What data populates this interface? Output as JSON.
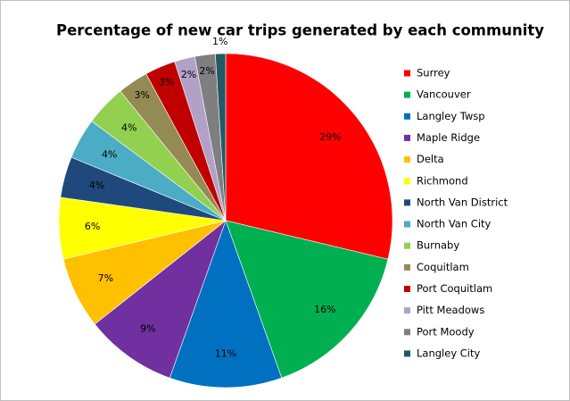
{
  "chart_data": {
    "type": "pie",
    "title": "Percentage of new car trips generated by each community",
    "categories": [
      "Surrey",
      "Vancouver",
      "Langley Twsp",
      "Maple Ridge",
      "Delta",
      "Richmond",
      "North Van District",
      "North Van City",
      "Burnaby",
      "Coquitlam",
      "Port Coquitlam",
      "Pitt Meadows",
      "Port Moody",
      "Langley City"
    ],
    "values": [
      29,
      16,
      11,
      9,
      7,
      6,
      4,
      4,
      4,
      3,
      3,
      2,
      2,
      1
    ],
    "value_labels": [
      "29%",
      "16%",
      "11%",
      "9%",
      "7%",
      "6%",
      "4%",
      "4%",
      "4%",
      "3%",
      "3%",
      "2%",
      "2%",
      "1%"
    ],
    "colors": [
      "#ff0000",
      "#00b050",
      "#0070c0",
      "#7030a0",
      "#ffc000",
      "#ffff00",
      "#1f497d",
      "#4bacc6",
      "#92d050",
      "#948a54",
      "#c00000",
      "#b2a1c7",
      "#7f7f7f",
      "#215967"
    ],
    "legend": "right"
  }
}
